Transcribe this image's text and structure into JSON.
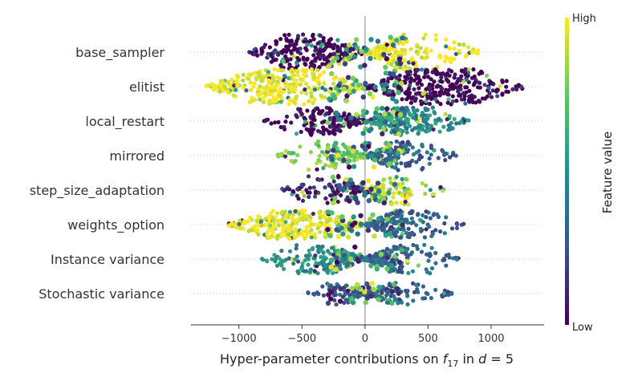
{
  "chart_data": {
    "type": "scatter",
    "subtype": "beeswarm",
    "xlabel_parts": {
      "pre": "Hyper-parameter contributions on ",
      "var": "f",
      "sub": "17",
      "mid": " in ",
      "var2": "d",
      "post": " = 5"
    },
    "xlim": [
      -1380,
      1420
    ],
    "x_ticks": [
      -1000,
      -500,
      0,
      500,
      1000
    ],
    "x_tick_labels": [
      "−1000",
      "−500",
      "0",
      "500",
      "1000"
    ],
    "categories": [
      "base_sampler",
      "elitist",
      "local_restart",
      "mirrored",
      "step_size_adaptation",
      "weights_option",
      "Instance variance",
      "Stochastic variance"
    ],
    "features": [
      {
        "name": "base_sampler",
        "left": {
          "min": -920,
          "peak": -450,
          "value": 0.0
        },
        "right": {
          "min": 0,
          "max": 910,
          "peak": 150,
          "value": 1.0
        },
        "halfwidth": 22
      },
      {
        "name": "elitist",
        "left": {
          "min": -1270,
          "peak": -700,
          "value": 1.0
        },
        "right": {
          "min": 0,
          "max": 1270,
          "peak": 550,
          "value": 0.0
        },
        "halfwidth": 22
      },
      {
        "name": "local_restart",
        "left": {
          "min": -820,
          "peak": -150,
          "value": 0.0
        },
        "right": {
          "min": 0,
          "max": 830,
          "peak": 250,
          "value": 0.5
        },
        "halfwidth": 18
      },
      {
        "name": "mirrored",
        "left": {
          "min": -700,
          "peak": -50,
          "value": 0.8
        },
        "right": {
          "min": 0,
          "max": 750,
          "peak": 100,
          "value": 0.3
        },
        "halfwidth": 18
      },
      {
        "name": "step_size_adaptation",
        "left": {
          "min": -660,
          "peak": -50,
          "value": 0.1
        },
        "right": {
          "min": 0,
          "max": 640,
          "peak": 50,
          "value": 0.9
        },
        "halfwidth": 18
      },
      {
        "name": "weights_option",
        "left": {
          "min": -1080,
          "peak": -600,
          "value": 1.0
        },
        "right": {
          "min": 0,
          "max": 790,
          "peak": 150,
          "value": 0.3
        },
        "halfwidth": 18
      },
      {
        "name": "Instance variance",
        "left": {
          "min": -820,
          "peak": -200,
          "value": 0.5
        },
        "right": {
          "min": 0,
          "max": 750,
          "peak": 100,
          "value": 0.35
        },
        "halfwidth": 18
      },
      {
        "name": "Stochastic variance",
        "left": {
          "min": -480,
          "peak": 0,
          "value": 0.3
        },
        "right": {
          "min": 0,
          "max": 700,
          "peak": 0,
          "value": 0.3
        },
        "halfwidth": 14
      }
    ],
    "colorbar": {
      "label": "Feature value",
      "high_label": "High",
      "low_label": "Low",
      "colormap": "viridis",
      "colors": [
        "#440154",
        "#3b528b",
        "#21918c",
        "#5ec962",
        "#fde725"
      ]
    },
    "zero_line": true,
    "grid": "horizontal dotted per row"
  }
}
